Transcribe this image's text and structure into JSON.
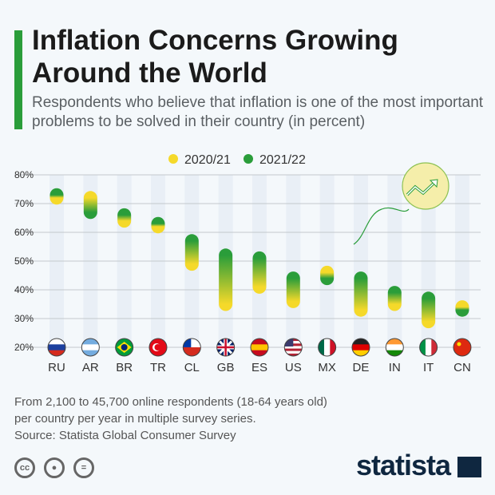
{
  "header": {
    "title": "Inflation Concerns Growing Around the World",
    "subtitle": "Respondents who believe that inflation is one of the most important problems to be solved in their country (in percent)"
  },
  "chart_data": {
    "type": "range-dot",
    "legend": [
      {
        "name": "2020/21",
        "color": "#f5d92a"
      },
      {
        "name": "2021/22",
        "color": "#2a9d3a"
      }
    ],
    "legend_position": "top-center",
    "categories": [
      "RU",
      "AR",
      "BR",
      "TR",
      "CL",
      "GB",
      "ES",
      "US",
      "MX",
      "DE",
      "IN",
      "IT",
      "CN"
    ],
    "series": [
      {
        "name": "2020/21",
        "values": [
          72,
          72,
          64,
          62,
          49,
          35,
          41,
          36,
          46,
          33,
          35,
          29,
          34
        ]
      },
      {
        "name": "2021/22",
        "values": [
          73,
          67,
          66,
          63,
          57,
          52,
          51,
          44,
          44,
          44,
          39,
          37,
          33
        ]
      }
    ],
    "yticks": [
      "20%",
      "30%",
      "40%",
      "50%",
      "60%",
      "70%",
      "80%"
    ],
    "ylim": [
      20,
      80
    ],
    "grid": true
  },
  "footer": {
    "note_line1": "From 2,100 to 45,700 online respondents (18-64 years old)",
    "note_line2": "per country per year in multiple survey series.",
    "source": "Source: Statista Global Consumer Survey",
    "license_icons": [
      "cc-icon",
      "attribution-icon",
      "no-derivatives-icon"
    ],
    "logo": "statista"
  }
}
